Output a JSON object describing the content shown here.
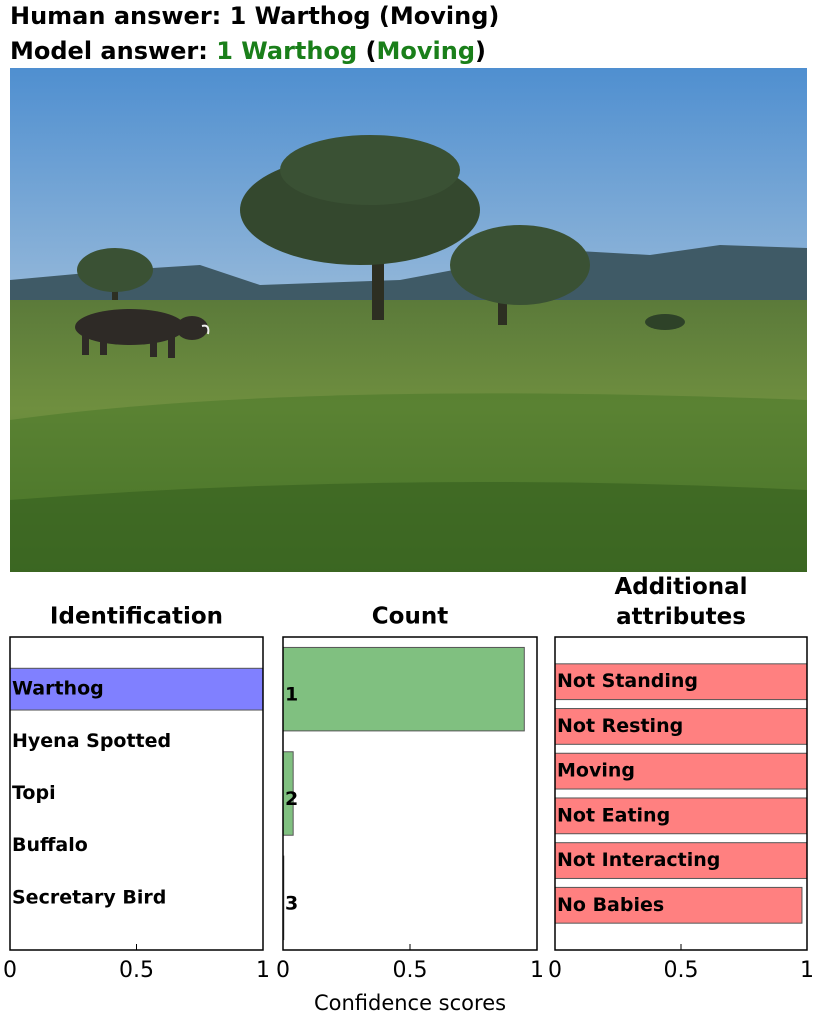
{
  "header": {
    "human_answer": "Human answer: 1 Warthog (Moving)",
    "model_answer": [
      {
        "text": "Model  answer: ",
        "color": "#000000"
      },
      {
        "text": "1 Warthog",
        "color": "#1a7f1a"
      },
      {
        "text": " (",
        "color": "#000000"
      },
      {
        "text": "Moving",
        "color": "#1a7f1a"
      },
      {
        "text": ")",
        "color": "#000000"
      }
    ]
  },
  "chart_data": [
    {
      "type": "bar",
      "orientation": "horizontal",
      "title": "Identification",
      "categories": [
        "Warthog",
        "Hyena Spotted",
        "Topi",
        "Buffalo",
        "Secretary Bird"
      ],
      "values": [
        1.0,
        0,
        0,
        0,
        0
      ],
      "color": "#8080ff",
      "xlim": [
        0,
        1
      ],
      "xticks": [
        0,
        0.5,
        1
      ]
    },
    {
      "type": "bar",
      "orientation": "horizontal",
      "title": "Count",
      "categories": [
        "1",
        "2",
        "3"
      ],
      "values": [
        0.95,
        0.04,
        0.003
      ],
      "color": "#80c080",
      "xlim": [
        0,
        1
      ],
      "xticks": [
        0,
        0.5,
        1
      ],
      "xlabel": "Confidence scores"
    },
    {
      "type": "bar",
      "orientation": "horizontal",
      "title": "Additional attributes",
      "categories": [
        "Not Standing",
        "Not Resting",
        "Moving",
        "Not Eating",
        "Not Interacting",
        "No Babies"
      ],
      "values": [
        1.0,
        1.0,
        1.0,
        1.0,
        1.0,
        0.98
      ],
      "color": "#ff8080",
      "xlim": [
        0,
        1
      ],
      "xticks": [
        0,
        0.5,
        1
      ]
    }
  ]
}
